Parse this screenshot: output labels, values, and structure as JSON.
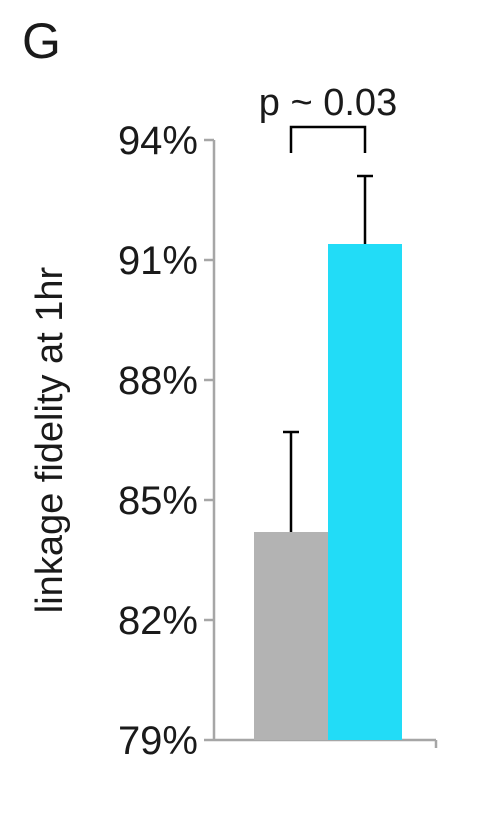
{
  "panel_label": "G",
  "chart_data": {
    "type": "bar",
    "categories": [
      "",
      ""
    ],
    "values": [
      84.2,
      91.4
    ],
    "error_upper": [
      86.7,
      93.1
    ],
    "colors": [
      "#b3b3b3",
      "#22dcf7"
    ],
    "ylabel": "linkage fidelity at 1hr",
    "ylim": [
      79,
      94
    ],
    "yticks": [
      79,
      82,
      85,
      88,
      91,
      94
    ],
    "ytick_labels": [
      "79%",
      "82%",
      "85%",
      "88%",
      "91%",
      "94%"
    ],
    "grid": false,
    "annotation": "p ~ 0.03"
  }
}
